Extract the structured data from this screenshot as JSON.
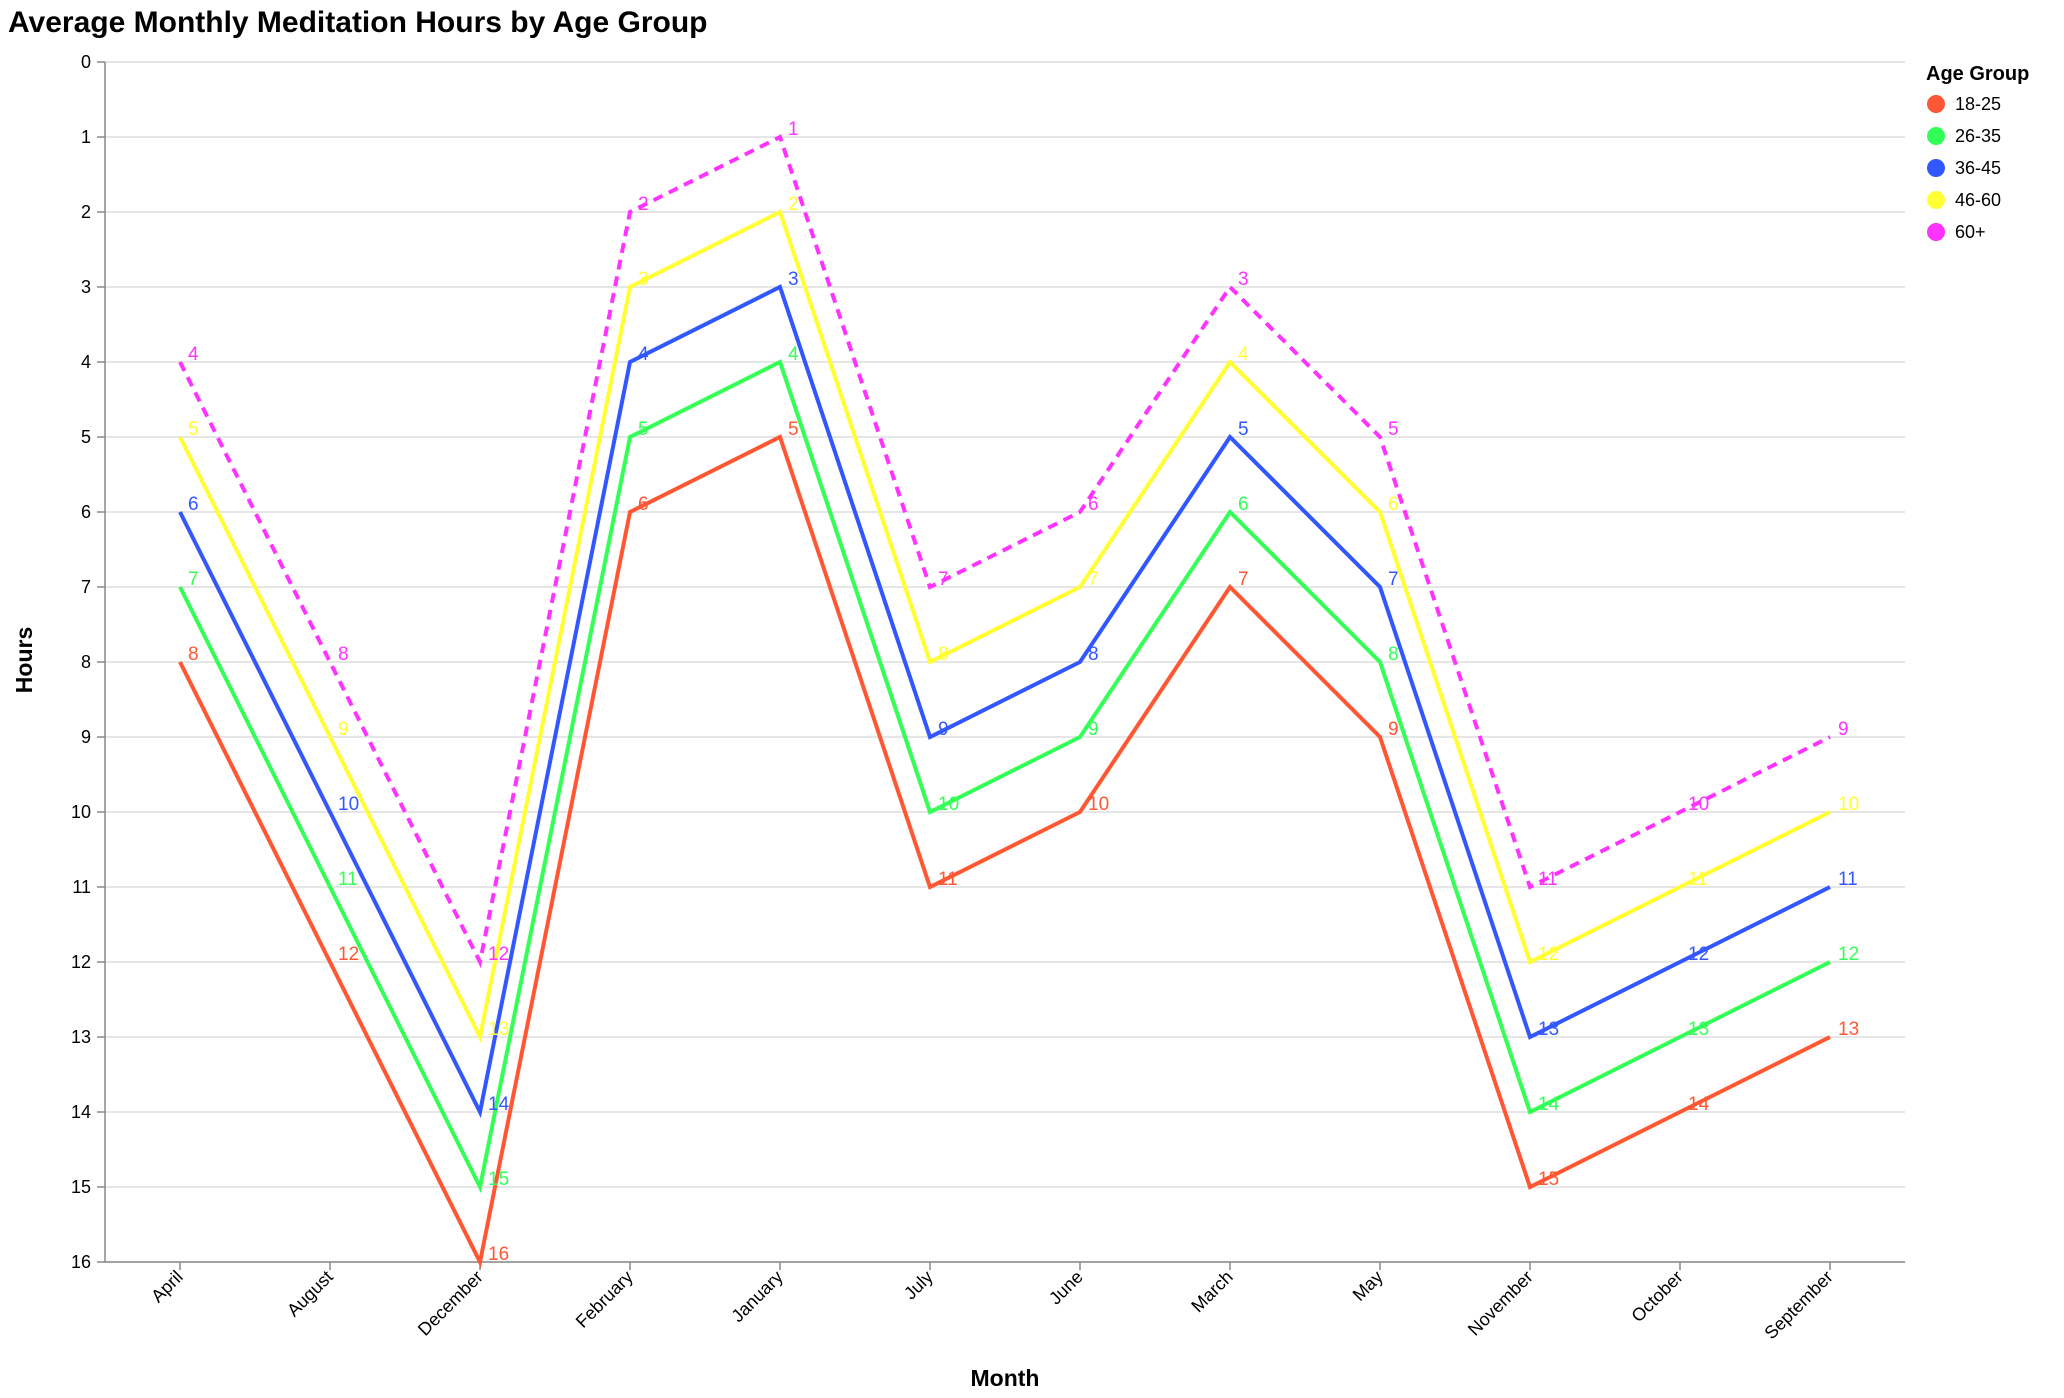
{
  "chart_data": {
    "type": "line",
    "title": "Average Monthly Meditation Hours by Age Group",
    "xlabel": "Month",
    "ylabel": "Hours",
    "ylim": [
      0,
      16
    ],
    "y_reversed": true,
    "grid": true,
    "legend": {
      "title": "Age Group",
      "placement": "right"
    },
    "categories": [
      "April",
      "August",
      "December",
      "February",
      "January",
      "July",
      "June",
      "March",
      "May",
      "November",
      "October",
      "September"
    ],
    "y_ticks": [
      0,
      1,
      2,
      3,
      4,
      5,
      6,
      7,
      8,
      9,
      10,
      11,
      12,
      13,
      14,
      15,
      16
    ],
    "series": [
      {
        "name": "18-25",
        "color": "#ff5733",
        "dashed": false,
        "values": [
          8,
          12,
          16,
          6,
          5,
          11,
          10,
          7,
          9,
          15,
          14,
          13
        ]
      },
      {
        "name": "26-35",
        "color": "#33ff57",
        "dashed": false,
        "values": [
          7,
          11,
          15,
          5,
          4,
          10,
          9,
          6,
          8,
          14,
          13,
          12
        ]
      },
      {
        "name": "36-45",
        "color": "#3357ff",
        "dashed": false,
        "values": [
          6,
          10,
          14,
          4,
          3,
          9,
          8,
          5,
          7,
          13,
          12,
          11
        ]
      },
      {
        "name": "46-60",
        "color": "#ffff33",
        "dashed": false,
        "values": [
          5,
          9,
          13,
          3,
          2,
          8,
          7,
          4,
          6,
          12,
          11,
          10
        ]
      },
      {
        "name": "60+",
        "color": "#ff33ff",
        "dashed": true,
        "values": [
          4,
          8,
          12,
          2,
          1,
          7,
          6,
          3,
          5,
          11,
          10,
          9
        ]
      }
    ]
  }
}
